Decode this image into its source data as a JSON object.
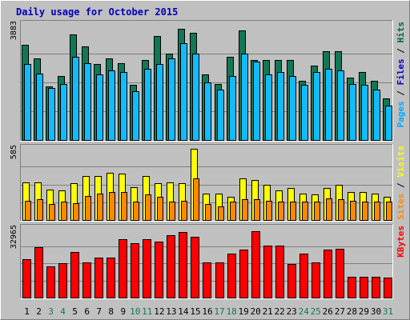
{
  "chart_data": {
    "type": "bar",
    "title": "Daily usage for October 2015",
    "x": [
      "1",
      "2",
      "3",
      "4",
      "5",
      "6",
      "7",
      "8",
      "9",
      "10",
      "11",
      "12",
      "13",
      "14",
      "15",
      "16",
      "17",
      "18",
      "19",
      "20",
      "21",
      "22",
      "23",
      "24",
      "25",
      "26",
      "27",
      "28",
      "29",
      "30",
      "31"
    ],
    "weekend_days": [
      "3",
      "4",
      "10",
      "11",
      "17",
      "18",
      "24",
      "25",
      "31"
    ],
    "panels": [
      {
        "name": "hits-files-pages",
        "ymax_label": "3883",
        "ymax": 3883,
        "right_label_parts": [
          {
            "text": "Pages",
            "color": "#00aaff"
          },
          {
            "text": " / ",
            "color": "#000000"
          },
          {
            "text": "Files",
            "color": "#0000cc"
          },
          {
            "text": " / ",
            "color": "#000000"
          },
          {
            "text": "Hits",
            "color": "#006644"
          }
        ],
        "series": [
          {
            "name": "Hits",
            "color": "#117755",
            "values": [
              3200,
              2750,
              1800,
              2150,
              3550,
              3150,
              2550,
              2750,
              2600,
              1850,
              2700,
              3500,
              2900,
              3750,
              3600,
              2200,
              1900,
              2800,
              3700,
              2700,
              2700,
              2700,
              2700,
              2000,
              2500,
              3000,
              3000,
              2100,
              2300,
              2000,
              1400
            ]
          },
          {
            "name": "Files",
            "color": "#0000cc",
            "values": [
              2550,
              2250,
              1750,
              1900,
              2800,
              2600,
              2200,
              2350,
              2300,
              1650,
              2400,
              2550,
              2750,
              3250,
              2900,
              1950,
              1700,
              2150,
              2900,
              2650,
              2200,
              2300,
              2150,
              1850,
              2300,
              2400,
              2350,
              1900,
              1850,
              1700,
              1150
            ]
          },
          {
            "name": "Pages",
            "color": "#11bbff",
            "values": [
              2550,
              2250,
              1750,
              1900,
              2800,
              2600,
              2200,
              2350,
              2300,
              1650,
              2400,
              2550,
              2750,
              3250,
              2900,
              1950,
              1700,
              2150,
              2900,
              2650,
              2200,
              2300,
              2150,
              1850,
              2300,
              2400,
              2350,
              1900,
              1850,
              1700,
              1150
            ]
          }
        ]
      },
      {
        "name": "visits-sites",
        "ymax_label": "585",
        "ymax": 585,
        "right_label_parts": [
          {
            "text": "Sites",
            "color": "#ff8800"
          },
          {
            "text": " / ",
            "color": "#000000"
          },
          {
            "text": "Visits",
            "color": "#ffff00"
          }
        ],
        "series": [
          {
            "name": "Visits",
            "color": "#ffff00",
            "values": [
              310,
              310,
              250,
              240,
              300,
              360,
              360,
              390,
              380,
              270,
              360,
              300,
              310,
              300,
              585,
              220,
              220,
              190,
              340,
              330,
              290,
              240,
              260,
              220,
              210,
              260,
              290,
              230,
              230,
              220,
              190
            ]
          },
          {
            "name": "Sites",
            "color": "#ff8800",
            "values": [
              160,
              170,
              130,
              150,
              140,
              200,
              220,
              230,
              230,
              150,
              210,
              190,
              150,
              160,
              340,
              130,
              110,
              150,
              170,
              170,
              160,
              150,
              150,
              150,
              150,
              180,
              170,
              160,
              150,
              150,
              150
            ]
          }
        ]
      },
      {
        "name": "kbytes",
        "ymax_label": "32965",
        "ymax": 32965,
        "right_label_parts": [
          {
            "text": "KBytes",
            "color": "#ff0000"
          }
        ],
        "series": [
          {
            "name": "KBytes",
            "color": "#ff0000",
            "values": [
              18500,
              24000,
              15000,
              16500,
              22000,
              17000,
              19000,
              19000,
              28000,
              26000,
              28000,
              27000,
              30000,
              31500,
              29000,
              17000,
              17000,
              21000,
              23000,
              32000,
              25000,
              25000,
              16000,
              21000,
              17000,
              23000,
              23500,
              10000,
              10000,
              10000,
              9500
            ]
          }
        ]
      }
    ]
  }
}
